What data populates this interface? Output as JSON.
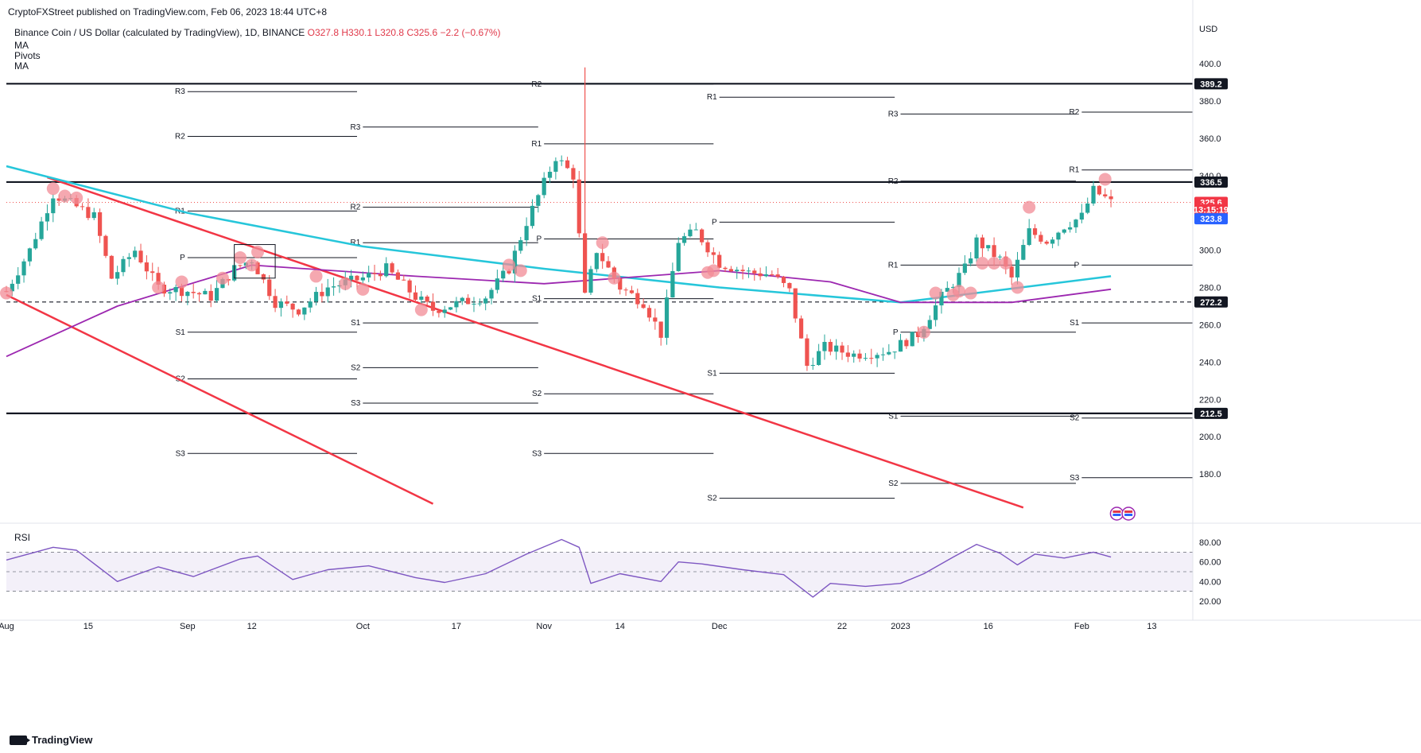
{
  "header": {
    "publish": "CryptoFXStreet published on TradingView.com, Feb 06, 2023 18:44 UTC+8",
    "symbol": "Binance Coin / US Dollar (calculated by TradingView), 1D, BINANCE",
    "open": "O327.8",
    "high": "H330.1",
    "low": "L320.8",
    "close": "C325.6",
    "change": "−2.2 (−0.67%)"
  },
  "indicators": [
    "MA",
    "Pivots",
    "MA"
  ],
  "rsi_label": "RSI",
  "footer": "TradingView",
  "price_axis": {
    "currency": "USD",
    "ticks": [
      "400.0",
      "380.0",
      "360.0",
      "340.0",
      "320.0",
      "300.0",
      "280.0",
      "260.0",
      "240.0",
      "220.0",
      "200.0",
      "180.0"
    ],
    "labels": [
      {
        "text": "389.2",
        "bg": "#131722",
        "fg": "#ffffff",
        "price": 389.2
      },
      {
        "text": "336.5",
        "bg": "#131722",
        "fg": "#ffffff",
        "price": 336.5
      },
      {
        "text": "325.6",
        "bg": "#f23645",
        "fg": "#ffffff",
        "price": 325.6
      },
      {
        "text": "13:15:19",
        "bg": "#f23645",
        "fg": "#ffffff",
        "price": 321.7
      },
      {
        "text": "323.8",
        "bg": "#2962ff",
        "fg": "#ffffff",
        "price": 316.8
      },
      {
        "text": "272.2",
        "bg": "#131722",
        "fg": "#ffffff",
        "price": 272.2
      },
      {
        "text": "212.5",
        "bg": "#131722",
        "fg": "#ffffff",
        "price": 212.5
      }
    ]
  },
  "rsi_axis": {
    "ticks": [
      "80.00",
      "60.00",
      "40.00",
      "20.00"
    ]
  },
  "time_axis": [
    "Aug",
    "15",
    "Sep",
    "12",
    "Oct",
    "17",
    "Nov",
    "14",
    "Dec",
    "22",
    "2023",
    "16",
    "Feb",
    "13"
  ],
  "colors": {
    "up": "#26a69a",
    "down": "#ef5350",
    "trend": "#f23645",
    "ma_cyan": "#26c6da",
    "ma_purple": "#9c27b0",
    "rsi": "#7e57c2",
    "pivot": "#131722",
    "marker": "#f28b95"
  },
  "chart_data": {
    "type": "candlestick",
    "title": "Binance Coin / US Dollar (calculated by TradingView), 1D, BINANCE",
    "y_axis": {
      "unit": "USD",
      "ylim": [
        160,
        405
      ]
    },
    "x_range": [
      "2022-08-01",
      "2023-02-20"
    ],
    "horizontal_levels": [
      389.2,
      336.5,
      272.2,
      212.5
    ],
    "last_price": 325.6,
    "close_series": [
      {
        "date": "2022-08-01",
        "close": 278
      },
      {
        "date": "2022-08-05",
        "close": 300
      },
      {
        "date": "2022-08-09",
        "close": 330
      },
      {
        "date": "2022-08-12",
        "close": 325
      },
      {
        "date": "2022-08-16",
        "close": 318
      },
      {
        "date": "2022-08-19",
        "close": 285
      },
      {
        "date": "2022-08-23",
        "close": 300
      },
      {
        "date": "2022-08-27",
        "close": 280
      },
      {
        "date": "2022-09-01",
        "close": 278
      },
      {
        "date": "2022-09-05",
        "close": 275
      },
      {
        "date": "2022-09-09",
        "close": 290
      },
      {
        "date": "2022-09-12",
        "close": 295
      },
      {
        "date": "2022-09-16",
        "close": 272
      },
      {
        "date": "2022-09-20",
        "close": 268
      },
      {
        "date": "2022-09-25",
        "close": 280
      },
      {
        "date": "2022-10-01",
        "close": 285
      },
      {
        "date": "2022-10-05",
        "close": 290
      },
      {
        "date": "2022-10-10",
        "close": 275
      },
      {
        "date": "2022-10-13",
        "close": 268
      },
      {
        "date": "2022-10-18",
        "close": 272
      },
      {
        "date": "2022-10-22",
        "close": 275
      },
      {
        "date": "2022-10-26",
        "close": 290
      },
      {
        "date": "2022-10-29",
        "close": 315
      },
      {
        "date": "2022-11-03",
        "close": 350
      },
      {
        "date": "2022-11-06",
        "close": 340
      },
      {
        "date": "2022-11-08",
        "close": 275
      },
      {
        "date": "2022-11-10",
        "close": 300
      },
      {
        "date": "2022-11-14",
        "close": 280
      },
      {
        "date": "2022-11-18",
        "close": 272
      },
      {
        "date": "2022-11-21",
        "close": 255
      },
      {
        "date": "2022-11-24",
        "close": 305
      },
      {
        "date": "2022-11-27",
        "close": 310
      },
      {
        "date": "2022-12-01",
        "close": 293
      },
      {
        "date": "2022-12-06",
        "close": 288
      },
      {
        "date": "2022-12-10",
        "close": 287
      },
      {
        "date": "2022-12-13",
        "close": 278
      },
      {
        "date": "2022-12-16",
        "close": 238
      },
      {
        "date": "2022-12-19",
        "close": 248
      },
      {
        "date": "2022-12-24",
        "close": 244
      },
      {
        "date": "2022-12-30",
        "close": 246
      },
      {
        "date": "2023-01-04",
        "close": 255
      },
      {
        "date": "2023-01-08",
        "close": 275
      },
      {
        "date": "2023-01-12",
        "close": 290
      },
      {
        "date": "2023-01-14",
        "close": 305
      },
      {
        "date": "2023-01-18",
        "close": 295
      },
      {
        "date": "2023-01-20",
        "close": 285
      },
      {
        "date": "2023-01-23",
        "close": 310
      },
      {
        "date": "2023-01-26",
        "close": 305
      },
      {
        "date": "2023-01-29",
        "close": 313
      },
      {
        "date": "2023-02-01",
        "close": 318
      },
      {
        "date": "2023-02-03",
        "close": 332
      },
      {
        "date": "2023-02-05",
        "close": 328
      },
      {
        "date": "2023-02-06",
        "close": 325.6
      }
    ],
    "ma_cyan": [
      {
        "date": "2022-08-01",
        "v": 345
      },
      {
        "date": "2022-09-01",
        "v": 320
      },
      {
        "date": "2022-10-01",
        "v": 302
      },
      {
        "date": "2022-11-01",
        "v": 290
      },
      {
        "date": "2022-12-01",
        "v": 280
      },
      {
        "date": "2023-01-01",
        "v": 272
      },
      {
        "date": "2023-02-06",
        "v": 286
      }
    ],
    "ma_purple": [
      {
        "date": "2022-08-01",
        "v": 243
      },
      {
        "date": "2022-08-20",
        "v": 270
      },
      {
        "date": "2022-09-12",
        "v": 292
      },
      {
        "date": "2022-10-10",
        "v": 286
      },
      {
        "date": "2022-11-01",
        "v": 282
      },
      {
        "date": "2022-12-01",
        "v": 289
      },
      {
        "date": "2022-12-20",
        "v": 283
      },
      {
        "date": "2023-01-01",
        "v": 272
      },
      {
        "date": "2023-01-20",
        "v": 272
      },
      {
        "date": "2023-02-06",
        "v": 279
      }
    ],
    "trendlines": [
      {
        "from": {
          "date": "2022-08-01",
          "v": 276
        },
        "to": {
          "date": "2022-10-13",
          "v": 164
        }
      },
      {
        "from": {
          "date": "2022-08-08",
          "v": 339
        },
        "to": {
          "date": "2023-01-22",
          "v": 162
        }
      }
    ],
    "pivot_periods": [
      {
        "period": "2022-08",
        "start": "2022-08-01",
        "end": "2022-08-31",
        "levels": []
      },
      {
        "period": "2022-09",
        "start": "2022-09-01",
        "end": "2022-09-30",
        "levels": [
          {
            "name": "R3",
            "v": 385
          },
          {
            "name": "R2",
            "v": 361
          },
          {
            "name": "R1",
            "v": 321
          },
          {
            "name": "P",
            "v": 296
          },
          {
            "name": "S1",
            "v": 256
          },
          {
            "name": "S2",
            "v": 231
          },
          {
            "name": "S3",
            "v": 191
          }
        ]
      },
      {
        "period": "2022-10",
        "start": "2022-10-01",
        "end": "2022-10-31",
        "levels": [
          {
            "name": "R3",
            "v": 366
          },
          {
            "name": "R2",
            "v": 323
          },
          {
            "name": "R1",
            "v": 304
          },
          {
            "name": "S1",
            "v": 261
          },
          {
            "name": "S2",
            "v": 237
          },
          {
            "name": "S3",
            "v": 218
          }
        ]
      },
      {
        "period": "2022-11",
        "start": "2022-11-01",
        "end": "2022-11-30",
        "levels": [
          {
            "name": "R2",
            "v": 389
          },
          {
            "name": "R1",
            "v": 357
          },
          {
            "name": "P",
            "v": 306
          },
          {
            "name": "S1",
            "v": 274
          },
          {
            "name": "S2",
            "v": 223
          },
          {
            "name": "S3",
            "v": 191
          }
        ]
      },
      {
        "period": "2022-12",
        "start": "2022-12-01",
        "end": "2022-12-31",
        "levels": [
          {
            "name": "R1",
            "v": 382
          },
          {
            "name": "P",
            "v": 315
          },
          {
            "name": "S1",
            "v": 234
          },
          {
            "name": "S2",
            "v": 167
          }
        ]
      },
      {
        "period": "2023-01",
        "start": "2023-01-01",
        "end": "2023-01-31",
        "levels": [
          {
            "name": "R3",
            "v": 373
          },
          {
            "name": "R2",
            "v": 337
          },
          {
            "name": "R1",
            "v": 292
          },
          {
            "name": "P",
            "v": 256
          },
          {
            "name": "S1",
            "v": 211
          },
          {
            "name": "S2",
            "v": 175
          }
        ]
      },
      {
        "period": "2023-02",
        "start": "2023-02-01",
        "end": "2023-02-20",
        "levels": [
          {
            "name": "R2",
            "v": 374
          },
          {
            "name": "R1",
            "v": 343
          },
          {
            "name": "P",
            "v": 292
          },
          {
            "name": "S1",
            "v": 261
          },
          {
            "name": "S2",
            "v": 210
          },
          {
            "name": "S3",
            "v": 178
          }
        ]
      }
    ],
    "touch_markers": [
      {
        "date": "2022-08-01",
        "v": 277
      },
      {
        "date": "2022-08-09",
        "v": 333
      },
      {
        "date": "2022-08-11",
        "v": 329
      },
      {
        "date": "2022-08-13",
        "v": 328
      },
      {
        "date": "2022-08-27",
        "v": 280
      },
      {
        "date": "2022-08-31",
        "v": 283
      },
      {
        "date": "2022-09-07",
        "v": 285
      },
      {
        "date": "2022-09-10",
        "v": 296
      },
      {
        "date": "2022-09-12",
        "v": 292
      },
      {
        "date": "2022-09-13",
        "v": 299
      },
      {
        "date": "2022-09-23",
        "v": 286
      },
      {
        "date": "2022-09-28",
        "v": 282
      },
      {
        "date": "2022-10-01",
        "v": 279
      },
      {
        "date": "2022-10-11",
        "v": 268
      },
      {
        "date": "2022-10-26",
        "v": 292
      },
      {
        "date": "2022-10-28",
        "v": 289
      },
      {
        "date": "2022-11-11",
        "v": 304
      },
      {
        "date": "2022-11-13",
        "v": 285
      },
      {
        "date": "2022-11-29",
        "v": 288
      },
      {
        "date": "2022-11-30",
        "v": 289
      },
      {
        "date": "2023-01-05",
        "v": 256
      },
      {
        "date": "2023-01-07",
        "v": 277
      },
      {
        "date": "2023-01-10",
        "v": 276
      },
      {
        "date": "2023-01-11",
        "v": 278
      },
      {
        "date": "2023-01-13",
        "v": 277
      },
      {
        "date": "2023-01-15",
        "v": 293
      },
      {
        "date": "2023-01-17",
        "v": 293
      },
      {
        "date": "2023-01-19",
        "v": 293
      },
      {
        "date": "2023-01-21",
        "v": 280
      },
      {
        "date": "2023-01-23",
        "v": 323
      },
      {
        "date": "2023-02-05",
        "v": 338
      }
    ],
    "rsi": {
      "ylim": [
        15,
        85
      ],
      "bands": [
        70,
        50,
        30
      ],
      "values": [
        {
          "date": "2022-08-01",
          "v": 62
        },
        {
          "date": "2022-08-09",
          "v": 75
        },
        {
          "date": "2022-08-13",
          "v": 72
        },
        {
          "date": "2022-08-20",
          "v": 40
        },
        {
          "date": "2022-08-27",
          "v": 55
        },
        {
          "date": "2022-09-02",
          "v": 45
        },
        {
          "date": "2022-09-10",
          "v": 63
        },
        {
          "date": "2022-09-13",
          "v": 66
        },
        {
          "date": "2022-09-19",
          "v": 42
        },
        {
          "date": "2022-09-25",
          "v": 52
        },
        {
          "date": "2022-10-02",
          "v": 56
        },
        {
          "date": "2022-10-10",
          "v": 44
        },
        {
          "date": "2022-10-15",
          "v": 39
        },
        {
          "date": "2022-10-22",
          "v": 48
        },
        {
          "date": "2022-10-29",
          "v": 68
        },
        {
          "date": "2022-11-04",
          "v": 83
        },
        {
          "date": "2022-11-07",
          "v": 75
        },
        {
          "date": "2022-11-09",
          "v": 38
        },
        {
          "date": "2022-11-14",
          "v": 48
        },
        {
          "date": "2022-11-21",
          "v": 40
        },
        {
          "date": "2022-11-24",
          "v": 60
        },
        {
          "date": "2022-11-28",
          "v": 58
        },
        {
          "date": "2022-12-05",
          "v": 52
        },
        {
          "date": "2022-12-12",
          "v": 47
        },
        {
          "date": "2022-12-17",
          "v": 24
        },
        {
          "date": "2022-12-20",
          "v": 38
        },
        {
          "date": "2022-12-26",
          "v": 35
        },
        {
          "date": "2023-01-01",
          "v": 38
        },
        {
          "date": "2023-01-05",
          "v": 48
        },
        {
          "date": "2023-01-10",
          "v": 65
        },
        {
          "date": "2023-01-14",
          "v": 78
        },
        {
          "date": "2023-01-18",
          "v": 69
        },
        {
          "date": "2023-01-21",
          "v": 57
        },
        {
          "date": "2023-01-24",
          "v": 68
        },
        {
          "date": "2023-01-29",
          "v": 64
        },
        {
          "date": "2023-02-03",
          "v": 70
        },
        {
          "date": "2023-02-06",
          "v": 65
        }
      ]
    }
  }
}
